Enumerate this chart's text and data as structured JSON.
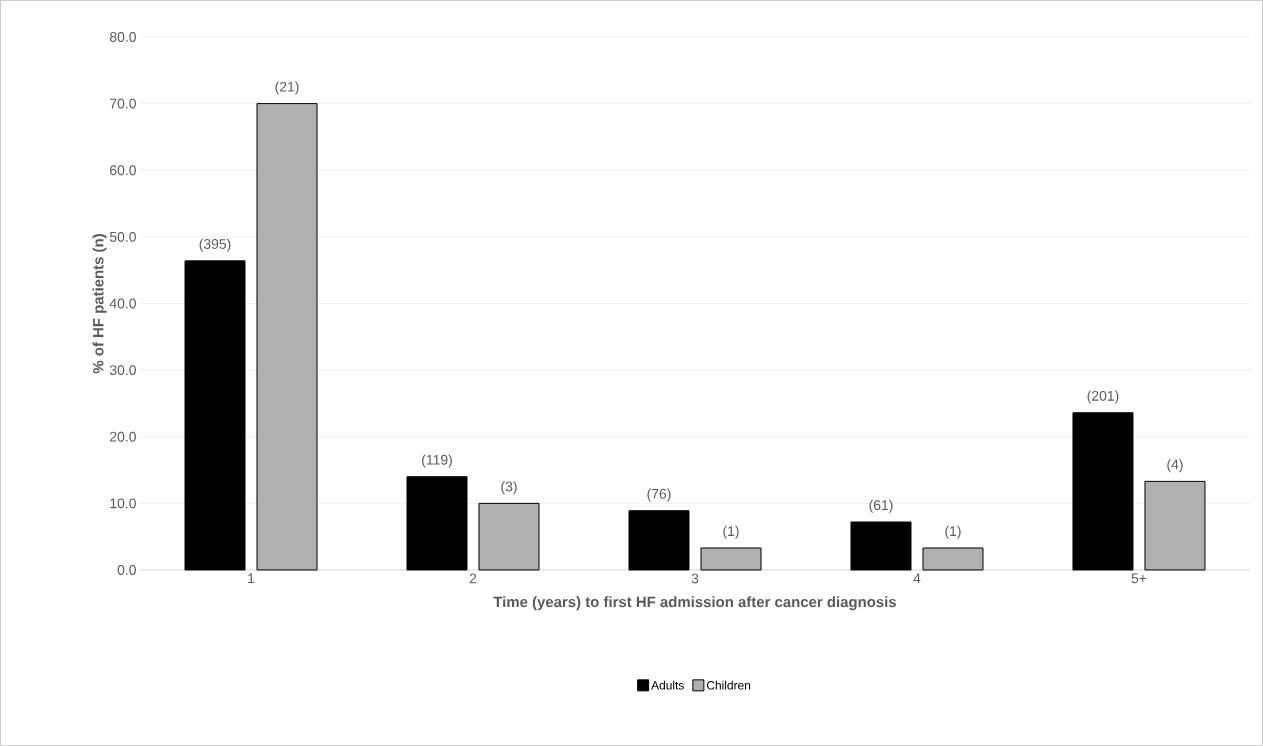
{
  "chart_data": {
    "type": "bar",
    "xlabel": "Time (years) to first HF admission after cancer diagnosis",
    "ylabel": "% of HF patients (n)",
    "categories": [
      "1",
      "2",
      "3",
      "4",
      "5+"
    ],
    "series": [
      {
        "name": "Adults",
        "color": "#000000",
        "values": [
          46.4,
          14.0,
          8.9,
          7.2,
          23.6
        ]
      },
      {
        "name": "Children",
        "color": "#b0b0b0",
        "values": [
          70.0,
          10.0,
          3.3,
          3.3,
          13.3
        ]
      }
    ],
    "annotations": [
      "(395)",
      "(119)",
      "(76)",
      "(61)",
      "(201)",
      "(21)",
      "(3)",
      "(1)",
      "(1)",
      "(4)"
    ],
    "ylim": [
      0,
      80
    ],
    "yticks": [
      {
        "value": 0,
        "label": "0.0"
      },
      {
        "value": 10,
        "label": "10.0"
      },
      {
        "value": 20,
        "label": "20.0"
      },
      {
        "value": 30,
        "label": "30.0"
      },
      {
        "value": 40,
        "label": "40.0"
      },
      {
        "value": 50,
        "label": "50.0"
      },
      {
        "value": 60,
        "label": "60.0"
      },
      {
        "value": 70,
        "label": "70.0"
      },
      {
        "value": 80,
        "label": "80.0"
      }
    ],
    "grid": "y",
    "legend": "bottom"
  }
}
